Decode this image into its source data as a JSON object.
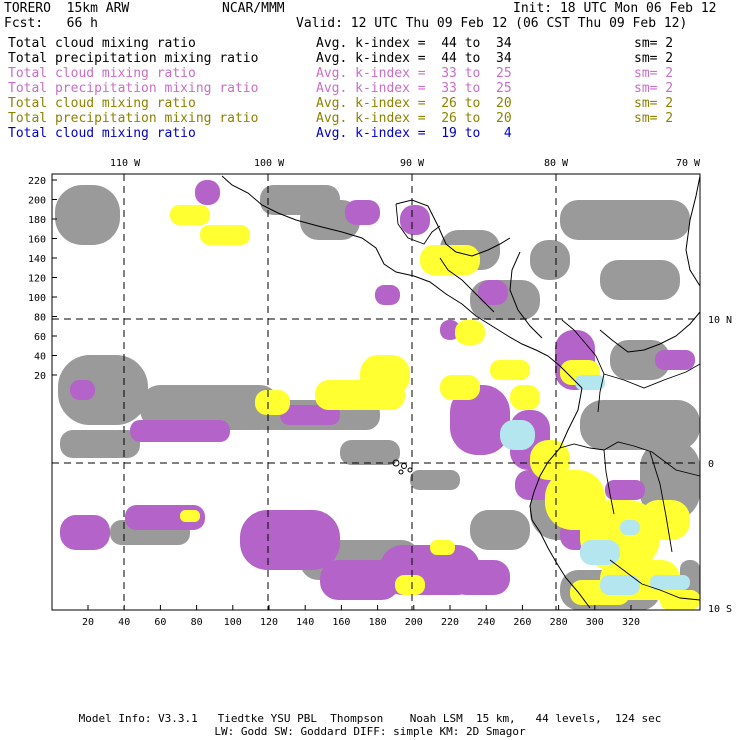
{
  "header": {
    "model": "TORERO  15km ARW",
    "org": "NCAR/MMM",
    "init": "Init: 18 UTC Mon 06 Feb 12",
    "forecast": "Fcst:   66 h",
    "valid": "Valid: 12 UTC Thu 09 Feb 12 (06 CST Thu 09 Feb 12)"
  },
  "legend": [
    {
      "name": "Total cloud mixing ratio",
      "avg": "Avg. k-index =  44 to  34",
      "sm": "sm= 2",
      "color": "#000000"
    },
    {
      "name": "Total precipitation mixing ratio",
      "avg": "Avg. k-index =  44 to  34",
      "sm": "sm= 2",
      "color": "#000000"
    },
    {
      "name": "Total cloud mixing ratio",
      "avg": "Avg. k-index =  33 to  25",
      "sm": "sm= 2",
      "color": "#c86ec8"
    },
    {
      "name": "Total precipitation mixing ratio",
      "avg": "Avg. k-index =  33 to  25",
      "sm": "sm= 2",
      "color": "#c86ec8"
    },
    {
      "name": "Total cloud mixing ratio",
      "avg": "Avg. k-index =  26 to  20",
      "sm": "sm= 2",
      "color": "#8c8200"
    },
    {
      "name": "Total precipitation mixing ratio",
      "avg": "Avg. k-index =  26 to  20",
      "sm": "sm= 2",
      "color": "#8c8200"
    },
    {
      "name": "Total cloud mixing ratio",
      "avg": "Avg. k-index =  19 to   4",
      "sm": "",
      "color": "#0000c8"
    }
  ],
  "map": {
    "lon_labels": [
      "110 W",
      "100 W",
      "90 W",
      "80 W",
      "70 W"
    ],
    "lat_labels": [
      "10 N",
      "0",
      "10 S"
    ],
    "y_ticks": [
      "220",
      "200",
      "180",
      "160",
      "140",
      "120",
      "100",
      "80",
      "60",
      "40",
      "20"
    ],
    "x_ticks": [
      "20",
      "40",
      "60",
      "80",
      "100",
      "120",
      "140",
      "160",
      "180",
      "200",
      "220",
      "240",
      "260",
      "280",
      "300",
      "320"
    ],
    "field_colors": {
      "gray": "#9a9a9a",
      "purple": "#b464c8",
      "yellow": "#ffff32",
      "light_blue": "#b4e6f0"
    }
  },
  "footer": {
    "line1": "Model Info: V3.3.1   Tiedtke YSU PBL  Thompson    Noah LSM  15 km,   44 levels,  124 sec",
    "line2": "LW: Godd SW: Goddard DIFF: simple KM: 2D Smagor"
  }
}
